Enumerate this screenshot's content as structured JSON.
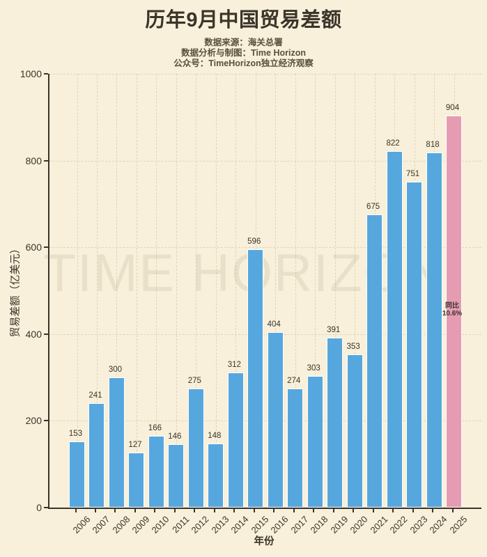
{
  "header": {
    "title": "历年9月中国贸易差额",
    "subtitles": [
      "数据来源：海关总署",
      "数据分析与制图：Time Horizon",
      "公众号：TimeHorizon独立经济观察"
    ]
  },
  "chart_data": {
    "type": "bar",
    "title": "历年9月中国贸易差额",
    "categories": [
      "2006",
      "2007",
      "2008",
      "2009",
      "2010",
      "2011",
      "2012",
      "2013",
      "2014",
      "2015",
      "2016",
      "2017",
      "2018",
      "2019",
      "2020",
      "2021",
      "2022",
      "2023",
      "2024",
      "2025"
    ],
    "values": [
      153,
      241,
      300,
      127,
      166,
      146,
      275,
      148,
      312,
      596,
      404,
      274,
      303,
      391,
      353,
      675,
      822,
      751,
      818,
      904
    ],
    "xlabel": "年份",
    "ylabel": "贸易差额（亿美元）",
    "ylim": [
      0,
      1000
    ],
    "yticks": [
      0,
      200,
      400,
      600,
      800,
      1000
    ],
    "grid": "dashed, horizontal and vertical",
    "legend": "none",
    "bar_color": "#57a7df",
    "highlight_index": 19,
    "highlight_color": "#e59cb3",
    "highlight_annotation": [
      "同比",
      "10.6%"
    ],
    "watermark": "TIME HORIZON",
    "background_color": "#f8f0da"
  }
}
